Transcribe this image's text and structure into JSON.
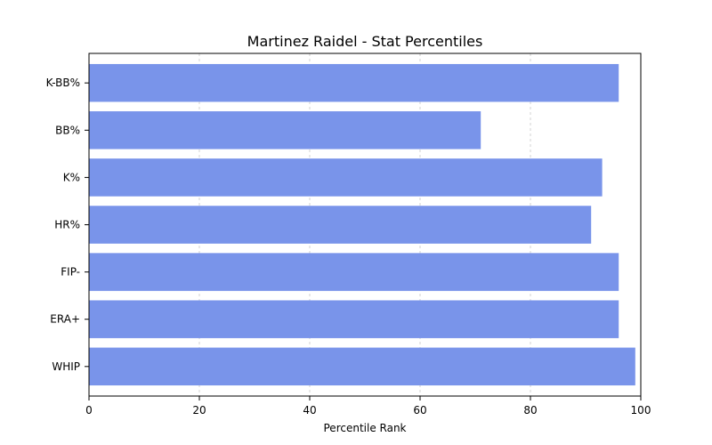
{
  "chart_data": {
    "type": "bar",
    "orientation": "horizontal",
    "title": "Martinez Raidel - Stat Percentiles",
    "xlabel": "Percentile Rank",
    "ylabel": "",
    "xlim": [
      0,
      100
    ],
    "xticks": [
      0,
      20,
      40,
      60,
      80,
      100
    ],
    "categories": [
      "K-BB%",
      "BB%",
      "K%",
      "HR%",
      "FIP-",
      "ERA+",
      "WHIP"
    ],
    "values": [
      96,
      71,
      93,
      91,
      96,
      96,
      99
    ],
    "bar_color": "#7994ea",
    "grid": {
      "x": true,
      "y": false,
      "style": "dashed"
    },
    "legend": "none"
  }
}
